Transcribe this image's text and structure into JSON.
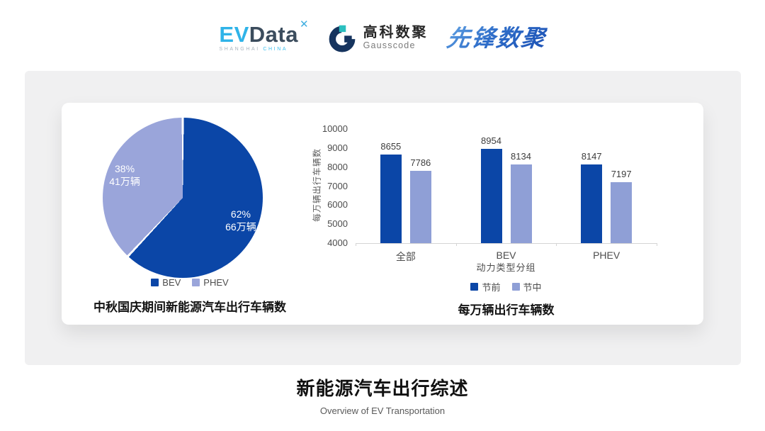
{
  "header": {
    "evdata": {
      "ev": "EV",
      "data": "Data",
      "mark": "✕",
      "sub_left": "SHANGHAI",
      "sub_right": "CHINA"
    },
    "gausscode": {
      "cn": "高科数聚",
      "en": "Gausscode"
    },
    "pioneer": {
      "text": "先锋数聚"
    }
  },
  "brand_colors": {
    "evdata_blue": "#2FB3E8",
    "evdata_dark": "#3B4C5D",
    "gausscode_navy": "#16345E",
    "gausscode_teal": "#2BBFBF",
    "pioneer_blue": "#2E6DC9",
    "series_dark_blue": "#0B46A7",
    "series_light_blue": "#8F9FD6",
    "panel_gray": "#f0f0f1"
  },
  "chart_data": [
    {
      "type": "pie",
      "title": "中秋国庆期间新能源汽车出行车辆数",
      "start_angle_deg": 0,
      "slices": [
        {
          "label": "BEV",
          "percent": 62,
          "value_label": "66万辆",
          "color": "#0B46A7"
        },
        {
          "label": "PHEV",
          "percent": 38,
          "value_label": "41万辆",
          "color": "#9AA5DA"
        }
      ],
      "legend_position": "bottom"
    },
    {
      "type": "bar",
      "title": "每万辆出行车辆数",
      "categories": [
        "全部",
        "BEV",
        "PHEV"
      ],
      "series": [
        {
          "name": "节前",
          "color": "#0B46A7",
          "values": [
            8655,
            8954,
            8147
          ]
        },
        {
          "name": "节中",
          "color": "#8F9FD6",
          "values": [
            7786,
            8134,
            7197
          ]
        }
      ],
      "xlabel": "动力类型分组",
      "ylabel": "每万辆出行车辆数",
      "ylim": [
        4000,
        10000
      ],
      "ytick_step": 1000,
      "grid": false,
      "legend_position": "bottom"
    }
  ],
  "footer": {
    "title": "新能源汽车出行综述",
    "subtitle": "Overview of EV Transportation"
  }
}
